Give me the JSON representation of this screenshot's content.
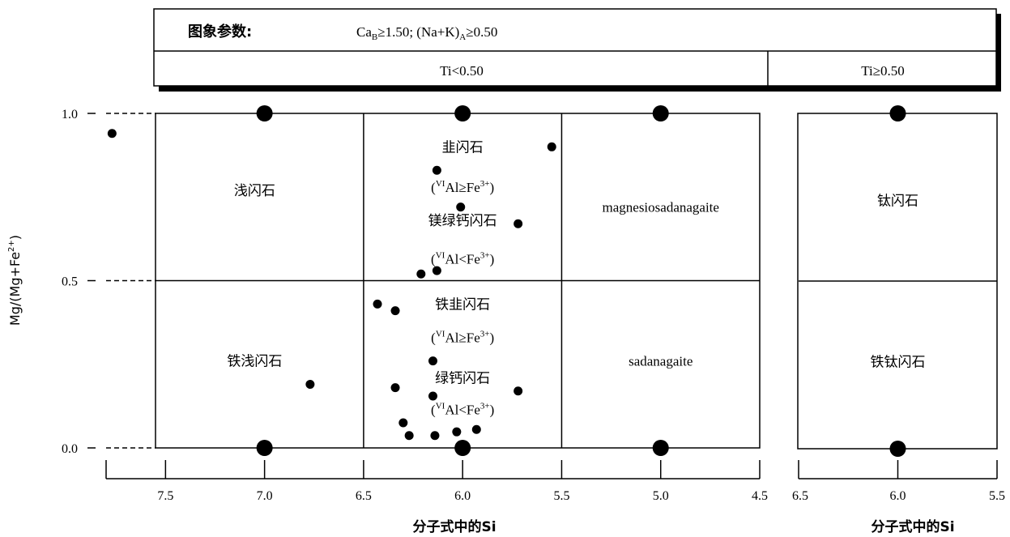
{
  "header": {
    "label": "图象参数:",
    "condition": "Ca",
    "condition_sub": "B",
    "condition_rest": "≥1.50; (Na+K)",
    "condition_sub2": "A",
    "condition_end": "≥0.50",
    "left_condition": "Ti<0.50",
    "right_condition": "Ti≥0.50"
  },
  "chart_data": [
    {
      "type": "scatter",
      "name": "main",
      "xlabel": "分子式中的Si",
      "ylabel": "Mg/(Mg+Fe²⁺)",
      "xlim": [
        7.8,
        4.5
      ],
      "ylim": [
        0.0,
        1.0
      ],
      "x_reversed": true,
      "x_ticks": [
        7.5,
        7.0,
        6.5,
        6.0,
        5.5,
        5.0,
        4.5
      ],
      "y_ticks": [
        0.0,
        0.5,
        1.0
      ],
      "y_tick_labels": [
        "0.0",
        "0.5",
        "1.0"
      ],
      "boundaries_x": [
        6.5,
        5.5
      ],
      "boundary_y": 0.5,
      "fields": [
        {
          "name": "浅闪石",
          "x": 7.05,
          "y": 0.77
        },
        {
          "name": "铁浅闪石",
          "x": 7.05,
          "y": 0.26
        },
        {
          "name": "韭闪石",
          "x": 6.0,
          "y": 0.9
        },
        {
          "name": "镁绿钙闪石",
          "x": 6.0,
          "y": 0.68
        },
        {
          "name": "铁韭闪石",
          "x": 6.0,
          "y": 0.43
        },
        {
          "name": "绿钙闪石",
          "x": 6.0,
          "y": 0.21
        },
        {
          "name": "magnesiosadanagaite",
          "x": 5.0,
          "y": 0.72
        },
        {
          "name": "sadanagaite",
          "x": 5.0,
          "y": 0.26
        }
      ],
      "subscripts": [
        {
          "pre": "(",
          "sup1": "VI",
          "mid": "Al≥Fe",
          "sup2": "3+",
          "post": ")",
          "x": 6.0,
          "y": 0.78
        },
        {
          "pre": "(",
          "sup1": "VI",
          "mid": "Al<Fe",
          "sup2": "3+",
          "post": ")",
          "x": 6.0,
          "y": 0.565
        },
        {
          "pre": "(",
          "sup1": "VI",
          "mid": "Al≥Fe",
          "sup2": "3+",
          "post": ")",
          "x": 6.0,
          "y": 0.33
        },
        {
          "pre": "(",
          "sup1": "VI",
          "mid": "Al<Fe",
          "sup2": "3+",
          "post": ")",
          "x": 6.0,
          "y": 0.115
        }
      ],
      "large_markers": [
        {
          "x": 7.0,
          "y": 1.0
        },
        {
          "x": 6.0,
          "y": 1.0
        },
        {
          "x": 5.0,
          "y": 1.0
        },
        {
          "x": 7.0,
          "y": 0.0
        },
        {
          "x": 6.0,
          "y": 0.0
        },
        {
          "x": 5.0,
          "y": 0.0
        }
      ],
      "points": [
        {
          "x": 7.77,
          "y": 0.94
        },
        {
          "x": 6.13,
          "y": 0.83
        },
        {
          "x": 5.55,
          "y": 0.9
        },
        {
          "x": 6.01,
          "y": 0.72
        },
        {
          "x": 5.72,
          "y": 0.67
        },
        {
          "x": 6.13,
          "y": 0.53
        },
        {
          "x": 6.21,
          "y": 0.52
        },
        {
          "x": 6.43,
          "y": 0.43
        },
        {
          "x": 6.34,
          "y": 0.41
        },
        {
          "x": 6.15,
          "y": 0.26
        },
        {
          "x": 6.77,
          "y": 0.19
        },
        {
          "x": 6.34,
          "y": 0.18
        },
        {
          "x": 5.72,
          "y": 0.17
        },
        {
          "x": 6.15,
          "y": 0.155
        },
        {
          "x": 6.3,
          "y": 0.075
        },
        {
          "x": 6.27,
          "y": 0.037
        },
        {
          "x": 6.14,
          "y": 0.037
        },
        {
          "x": 6.03,
          "y": 0.048
        },
        {
          "x": 5.93,
          "y": 0.055
        }
      ]
    },
    {
      "type": "scatter",
      "name": "side",
      "xlabel": "分子式中的Si",
      "xlim": [
        6.5,
        5.5
      ],
      "ylim": [
        0.0,
        1.0
      ],
      "x_reversed": true,
      "x_ticks": [
        6.5,
        6.0,
        5.5
      ],
      "boundary_y": 0.5,
      "fields": [
        {
          "name": "钛闪石",
          "x": 6.0,
          "y": 0.74
        },
        {
          "name": "铁钛闪石",
          "x": 6.0,
          "y": 0.26
        }
      ],
      "large_markers": [
        {
          "x": 6.0,
          "y": 1.0
        },
        {
          "x": 6.0,
          "y": 0.0
        }
      ],
      "points": []
    }
  ]
}
